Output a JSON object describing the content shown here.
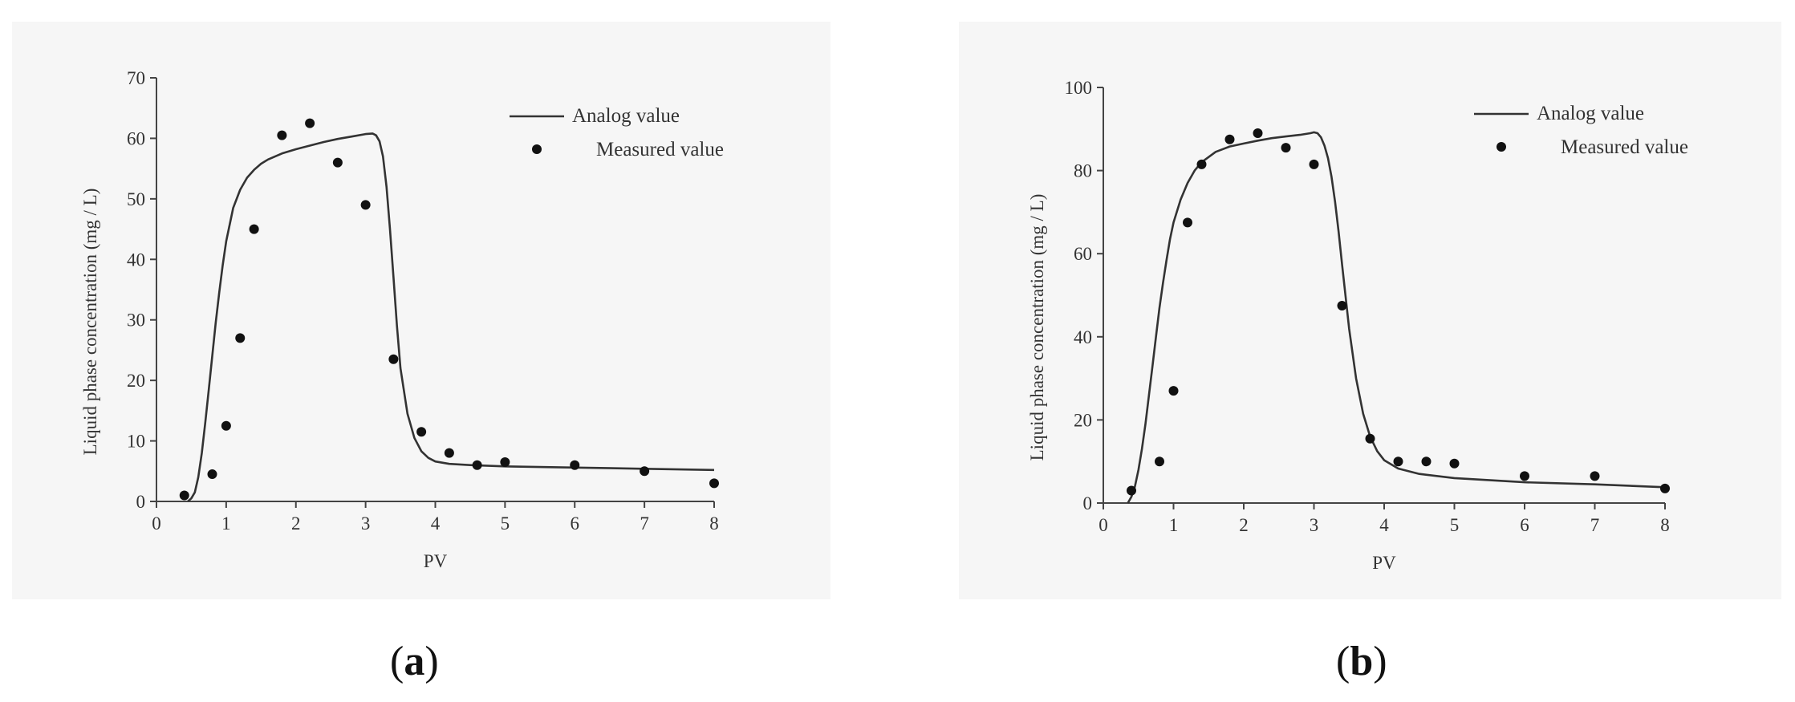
{
  "chart_data": [
    {
      "type": "line",
      "panel_label": "a",
      "title": "",
      "xlabel": "PV",
      "ylabel": "Liquid phase concentration (mg / L)",
      "xlim": [
        0,
        8
      ],
      "ylim": [
        0,
        70
      ],
      "xticks": [
        0,
        1,
        2,
        3,
        4,
        5,
        6,
        7,
        8
      ],
      "yticks": [
        0,
        10,
        20,
        30,
        40,
        50,
        60,
        70
      ],
      "legend_position": "top-right",
      "series": [
        {
          "name": "Analog value",
          "kind": "line",
          "color": "#333333",
          "x": [
            0.45,
            0.5,
            0.55,
            0.6,
            0.65,
            0.7,
            0.75,
            0.8,
            0.85,
            0.9,
            0.95,
            1.0,
            1.1,
            1.2,
            1.3,
            1.4,
            1.5,
            1.6,
            1.8,
            2.0,
            2.2,
            2.4,
            2.6,
            2.8,
            3.0,
            3.1,
            3.15,
            3.2,
            3.25,
            3.3,
            3.35,
            3.4,
            3.45,
            3.5,
            3.6,
            3.7,
            3.8,
            3.9,
            4.0,
            4.2,
            4.5,
            5.0,
            6.0,
            7.0,
            8.0
          ],
          "y": [
            0,
            0.5,
            1.5,
            4,
            8,
            13,
            18.5,
            24,
            29.5,
            34.5,
            39,
            43,
            48.5,
            51.5,
            53.5,
            54.8,
            55.8,
            56.5,
            57.5,
            58.2,
            58.8,
            59.4,
            59.9,
            60.3,
            60.7,
            60.8,
            60.5,
            59.5,
            57,
            52,
            45,
            37,
            29,
            22,
            14.5,
            10.5,
            8.3,
            7.2,
            6.6,
            6.2,
            6.0,
            5.8,
            5.6,
            5.4,
            5.2
          ]
        },
        {
          "name": "Measured value",
          "kind": "scatter",
          "color": "#111111",
          "x": [
            0.4,
            0.8,
            1.0,
            1.2,
            1.4,
            1.8,
            2.2,
            2.6,
            3.0,
            3.4,
            3.8,
            4.2,
            4.6,
            5.0,
            6.0,
            7.0,
            8.0
          ],
          "y": [
            1,
            4.5,
            12.5,
            27,
            45,
            60.5,
            62.5,
            56,
            49,
            23.5,
            11.5,
            8,
            6,
            6.5,
            6,
            5,
            3
          ]
        }
      ]
    },
    {
      "type": "line",
      "panel_label": "b",
      "title": "",
      "xlabel": "PV",
      "ylabel": "Liquid phase concentration (mg / L)",
      "xlim": [
        0,
        8
      ],
      "ylim": [
        0,
        100
      ],
      "xticks": [
        0,
        1,
        2,
        3,
        4,
        5,
        6,
        7,
        8
      ],
      "yticks": [
        0,
        20,
        40,
        60,
        80,
        100
      ],
      "legend_position": "top-right",
      "series": [
        {
          "name": "Analog value",
          "kind": "line",
          "color": "#333333",
          "x": [
            0.35,
            0.4,
            0.45,
            0.5,
            0.55,
            0.6,
            0.65,
            0.7,
            0.75,
            0.8,
            0.85,
            0.9,
            0.95,
            1.0,
            1.1,
            1.2,
            1.3,
            1.4,
            1.6,
            1.8,
            2.0,
            2.2,
            2.4,
            2.6,
            2.8,
            2.95,
            3.0,
            3.05,
            3.1,
            3.15,
            3.2,
            3.25,
            3.3,
            3.35,
            3.4,
            3.5,
            3.6,
            3.7,
            3.8,
            3.9,
            4.0,
            4.2,
            4.5,
            5.0,
            6.0,
            7.0,
            8.0
          ],
          "y": [
            0,
            1.5,
            4,
            8,
            13,
            19,
            26,
            33,
            40,
            47,
            53,
            58.5,
            63.5,
            67.5,
            73,
            77,
            80,
            82,
            84.5,
            85.8,
            86.5,
            87.2,
            87.8,
            88.2,
            88.6,
            89,
            89.2,
            89,
            88,
            86,
            83,
            78.5,
            72.5,
            65.5,
            57.5,
            42,
            30,
            21.5,
            16,
            12.5,
            10.3,
            8.3,
            7,
            6,
            5,
            4.5,
            3.8
          ]
        },
        {
          "name": "Measured value",
          "kind": "scatter",
          "color": "#111111",
          "x": [
            0.4,
            0.8,
            1.0,
            1.2,
            1.4,
            1.8,
            2.2,
            2.6,
            3.0,
            3.4,
            3.8,
            4.2,
            4.6,
            5.0,
            6.0,
            7.0,
            8.0
          ],
          "y": [
            3,
            10,
            27,
            67.5,
            81.5,
            87.5,
            89,
            85.5,
            81.5,
            47.5,
            15.5,
            10,
            10,
            9.5,
            6.5,
            6.5,
            3.5
          ]
        }
      ]
    }
  ],
  "captions": [
    {
      "paren_open": "(",
      "letter": "a",
      "paren_close": ")"
    },
    {
      "paren_open": "(",
      "letter": "b",
      "paren_close": ")"
    }
  ]
}
